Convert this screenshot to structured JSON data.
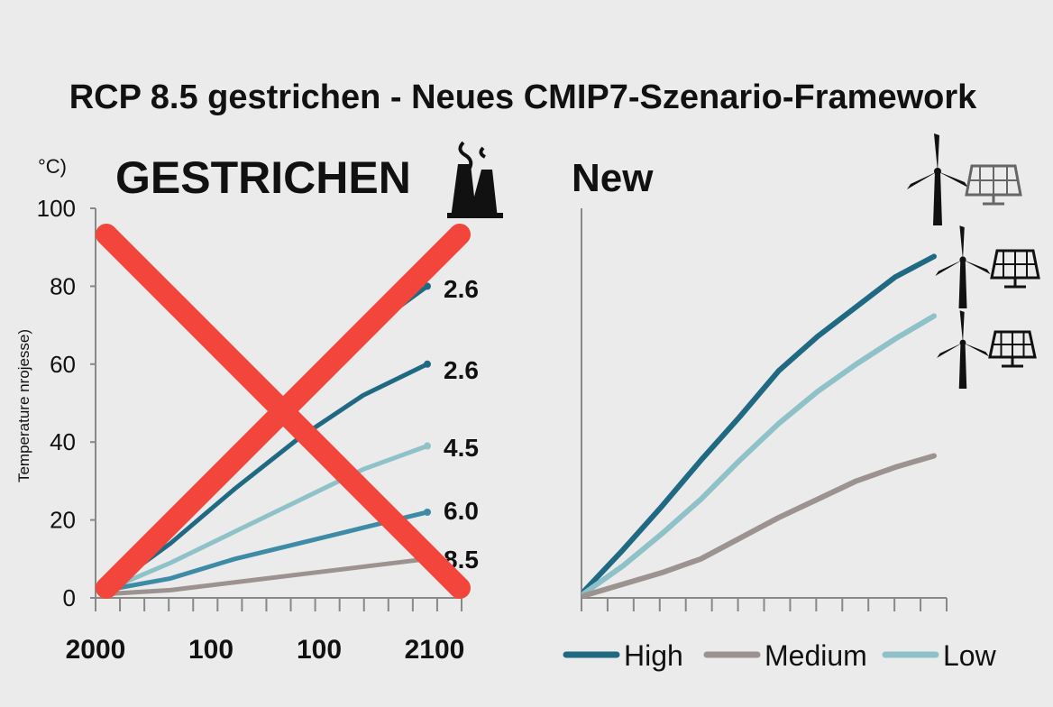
{
  "title": "RCP 8.5 gestrichen - Neues CMIP7-Szenario-Framework",
  "colors": {
    "background": "#ebebeb",
    "dark_teal": "#1f6a82",
    "mid_teal": "#3d8ba4",
    "light_teal": "#8fc1c9",
    "gray_brown": "#9c9290",
    "cross_red": "#f2463c",
    "axis": "#888888"
  },
  "left_panel": {
    "heading": "GESTRICHEN",
    "unit_label": "°C)",
    "factory_icon": "factory-smokestack-icon",
    "strike_icon": "red-x-cross-icon",
    "series_end_labels": [
      "2.6",
      "2.6",
      "4.5",
      "6.0",
      "8.5"
    ]
  },
  "right_panel": {
    "heading": "New",
    "icons": [
      "wind-turbine-icon",
      "solar-panel-icon"
    ],
    "legend": [
      {
        "label": "High",
        "color": "#1f6a82"
      },
      {
        "label": "Medium",
        "color": "#9c9290"
      },
      {
        "label": "Low",
        "color": "#8fc1c9"
      }
    ]
  },
  "chart_data": [
    {
      "type": "line",
      "title": "GESTRICHEN",
      "ylabel": "Temperature nrojesse)",
      "unit": "°C)",
      "ylim": [
        0,
        100
      ],
      "yticks": [
        0,
        20,
        40,
        60,
        80,
        100
      ],
      "x_tick_labels": [
        "2000",
        "100",
        "100",
        "2100"
      ],
      "x": [
        2000,
        2020,
        2040,
        2060,
        2080,
        2100
      ],
      "crossed_out": true,
      "series": [
        {
          "name": "2.6",
          "color": "#1f6a82",
          "values": [
            2,
            19,
            38,
            55,
            68,
            80
          ]
        },
        {
          "name": "2.6",
          "color": "#1f6a82",
          "values": [
            2,
            14,
            28,
            41,
            52,
            60
          ]
        },
        {
          "name": "4.5",
          "color": "#8fc1c9",
          "values": [
            2,
            9,
            17,
            25,
            33,
            39
          ]
        },
        {
          "name": "6.0",
          "color": "#3d8ba4",
          "values": [
            2,
            5,
            10,
            14,
            18,
            22
          ]
        },
        {
          "name": "8.5",
          "color": "#9c9290",
          "values": [
            1,
            2,
            4,
            6,
            8,
            10
          ]
        }
      ],
      "grid": false
    },
    {
      "type": "line",
      "title": "New",
      "x": [
        0,
        1,
        2,
        3,
        4,
        5,
        6,
        7,
        8,
        9
      ],
      "grid": false,
      "legend_position": "bottom",
      "series": [
        {
          "name": "High",
          "color": "#1f6a82",
          "values": [
            3,
            21,
            40,
            60,
            79,
            99,
            114,
            127,
            140,
            149
          ]
        },
        {
          "name": "Low",
          "color": "#8fc1c9",
          "values": [
            2,
            14,
            28,
            43,
            60,
            76,
            90,
            102,
            113,
            123
          ]
        },
        {
          "name": "Medium",
          "color": "#9c9290",
          "values": [
            1,
            6,
            11,
            17,
            26,
            35,
            43,
            51,
            57,
            62
          ]
        }
      ]
    }
  ]
}
